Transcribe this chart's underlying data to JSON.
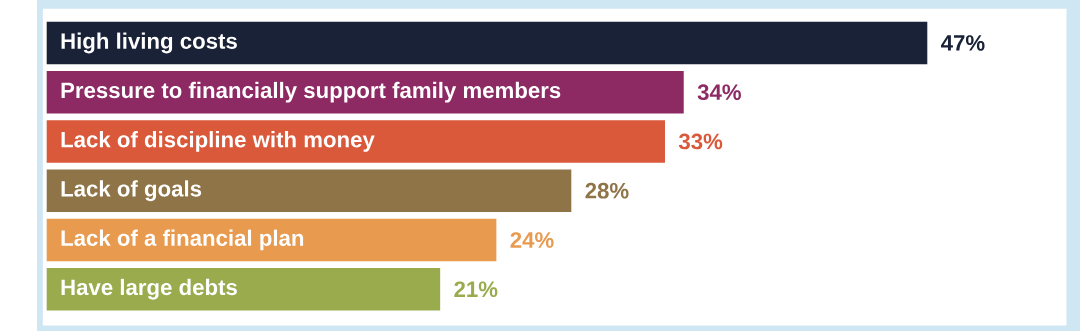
{
  "chart_data": {
    "type": "bar",
    "orientation": "horizontal",
    "categories": [
      "High living costs",
      "Pressure to financially support family members",
      "Lack of discipline with money",
      "Lack of goals",
      "Lack of a financial plan",
      "Have large debts"
    ],
    "values": [
      47,
      34,
      33,
      28,
      24,
      21
    ],
    "colors": [
      "#1a2238",
      "#8e2a63",
      "#d9593a",
      "#8f7448",
      "#e89a4f",
      "#9aab4e"
    ],
    "value_labels": [
      "47%",
      "34%",
      "33%",
      "28%",
      "24%",
      "21%"
    ]
  }
}
